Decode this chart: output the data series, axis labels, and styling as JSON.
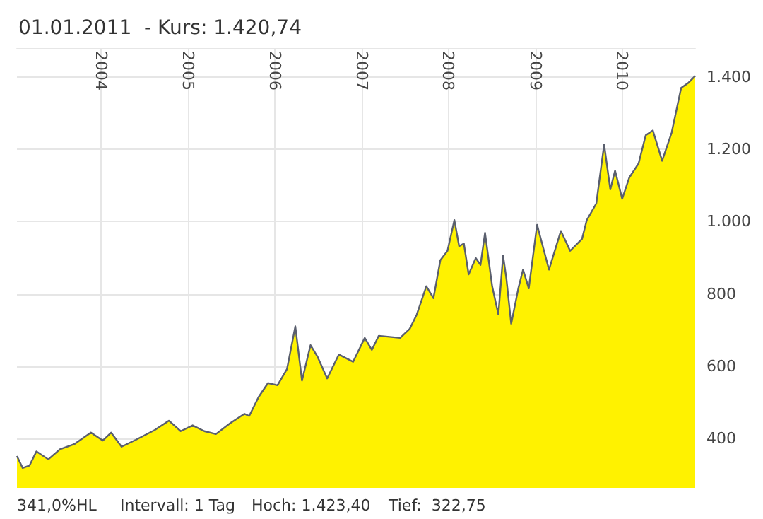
{
  "chart_data": {
    "type": "area",
    "title": "01.01.2011  - Kurs: 1.420,74",
    "annotations": [
      "341,0%HL",
      "Intervall: 1 Tag",
      "Hoch: 1.423,40",
      "Tief:  322,75"
    ],
    "xlim": [
      "2003-01-13",
      "2010-11-05"
    ],
    "xticks": [
      {
        "value": "2004-01-01",
        "label": "2004"
      },
      {
        "value": "2005-01-01",
        "label": "2005"
      },
      {
        "value": "2006-01-01",
        "label": "2006"
      },
      {
        "value": "2007-01-01",
        "label": "2007"
      },
      {
        "value": "2008-01-01",
        "label": "2008"
      },
      {
        "value": "2009-01-01",
        "label": "2009"
      },
      {
        "value": "2010-01-01",
        "label": "2010"
      }
    ],
    "ylim": [
      263,
      1480
    ],
    "yticks": [
      400,
      600,
      800,
      {
        "value": 1000,
        "label": "1.000"
      },
      {
        "value": 1200,
        "label": "1.200"
      },
      {
        "value": 1400,
        "label": "1.400"
      }
    ],
    "grid": true,
    "x": [
      "2003-01-13",
      "2003-02-06",
      "2003-03-07",
      "2003-04-05",
      "2003-05-25",
      "2003-07-13",
      "2003-09-11",
      "2003-11-20",
      "2004-01-09",
      "2004-02-13",
      "2004-03-28",
      "2004-05-27",
      "2004-08-14",
      "2004-10-13",
      "2004-12-02",
      "2005-01-21",
      "2005-03-11",
      "2005-04-29",
      "2005-06-28",
      "2005-08-27",
      "2005-09-16",
      "2005-10-25",
      "2005-12-04",
      "2006-01-13",
      "2006-02-22",
      "2006-03-29",
      "2006-04-26",
      "2006-06-01",
      "2006-07-01",
      "2006-08-10",
      "2006-09-28",
      "2006-11-27",
      "2007-01-15",
      "2007-02-14",
      "2007-03-15",
      "2007-06-13",
      "2007-07-23",
      "2007-08-22",
      "2007-10-01",
      "2007-10-31",
      "2007-11-29",
      "2007-12-29",
      "2008-01-27",
      "2008-02-16",
      "2008-03-07",
      "2008-03-27",
      "2008-04-26",
      "2008-05-16",
      "2008-06-04",
      "2008-07-04",
      "2008-07-30",
      "2008-08-19",
      "2008-09-02",
      "2008-09-22",
      "2008-10-22",
      "2008-11-11",
      "2008-12-05",
      "2009-01-09",
      "2009-02-28",
      "2009-04-19",
      "2009-05-28",
      "2009-07-17",
      "2009-08-06",
      "2009-09-15",
      "2009-10-18",
      "2009-11-13",
      "2009-12-03",
      "2010-01-02",
      "2010-02-01",
      "2010-03-12",
      "2010-04-11",
      "2010-05-11",
      "2010-06-19",
      "2010-07-29",
      "2010-09-07",
      "2010-10-06",
      "2010-11-05"
    ],
    "series": [
      {
        "color": "#fff200",
        "values": [
          351,
          318,
          325,
          364,
          342,
          370,
          384,
          416,
          394,
          416,
          377,
          396,
          423,
          449,
          420,
          436,
          420,
          412,
          442,
          468,
          462,
          514,
          553,
          547,
          592,
          710,
          560,
          658,
          625,
          566,
          632,
          612,
          678,
          645,
          684,
          678,
          703,
          743,
          821,
          788,
          893,
          919,
          1004,
          932,
          939,
          854,
          899,
          880,
          969,
          821,
          743,
          906,
          841,
          717,
          815,
          867,
          815,
          991,
          867,
          974,
          919,
          952,
          1004,
          1050,
          1213,
          1089,
          1141,
          1063,
          1122,
          1161,
          1239,
          1252,
          1168,
          1246,
          1370,
          1383,
          1403
        ]
      }
    ]
  }
}
